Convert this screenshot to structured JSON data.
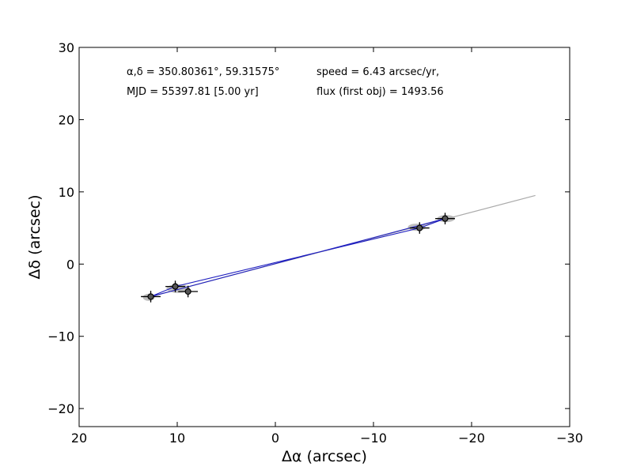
{
  "chart_data": {
    "type": "scatter",
    "title": "",
    "xlabel": "Δα (arcsec)",
    "ylabel": "Δδ (arcsec)",
    "xlim": [
      20,
      -30
    ],
    "ylim": [
      -22.5,
      30
    ],
    "x_ticks": [
      20,
      10,
      0,
      -10,
      -20,
      -30
    ],
    "x_tick_labels": [
      "20",
      "10",
      "0",
      "−10",
      "−20",
      "−30"
    ],
    "y_ticks": [
      30,
      20,
      10,
      0,
      -10,
      -20
    ],
    "y_tick_labels": [
      "30",
      "20",
      "10",
      "0",
      "−10",
      "−20"
    ],
    "grid": false,
    "annotations": [
      {
        "text": "α,δ = 350.80361°, 59.31575°"
      },
      {
        "text": "MJD = 55397.81 [5.00 yr]"
      },
      {
        "text": "speed = 6.43 arcsec/yr,"
      },
      {
        "text": "flux (first obj) = 1493.56"
      }
    ],
    "series": [
      {
        "name": "observations",
        "color": "#000000",
        "marker_color": "#555555",
        "points": [
          {
            "x": 12.7,
            "y": -4.5,
            "xerr": 1.0,
            "yerr": 0.8
          },
          {
            "x": 10.2,
            "y": -3.1,
            "xerr": 1.0,
            "yerr": 0.8
          },
          {
            "x": 8.9,
            "y": -3.8,
            "xerr": 1.0,
            "yerr": 0.8
          },
          {
            "x": -14.7,
            "y": 5.0,
            "xerr": 1.0,
            "yerr": 0.8
          },
          {
            "x": -17.3,
            "y": 6.3,
            "xerr": 1.0,
            "yerr": 0.8
          }
        ]
      },
      {
        "name": "predicted",
        "color": "#aaaaaa",
        "points": [
          {
            "x": 12.9,
            "y": -4.6,
            "rx": 0.6,
            "ry": 0.5
          },
          {
            "x": 9.9,
            "y": -3.4,
            "rx": 1.2,
            "ry": 0.6
          },
          {
            "x": -14.4,
            "y": 5.1,
            "rx": 0.9,
            "ry": 0.5
          },
          {
            "x": -17.4,
            "y": 6.3,
            "rx": 0.9,
            "ry": 0.5
          }
        ]
      },
      {
        "name": "fit line",
        "type": "line",
        "color": "#aaaaaa",
        "x": [
          13.0,
          -26.5
        ],
        "y": [
          -4.6,
          9.5
        ]
      },
      {
        "name": "track",
        "type": "line",
        "color": "#1f1fbf",
        "x": [
          12.7,
          10.2,
          -14.7,
          -17.3,
          9.6,
          12.7
        ],
        "y": [
          -4.5,
          -3.1,
          5.0,
          6.3,
          -3.4,
          -4.5
        ]
      }
    ]
  }
}
